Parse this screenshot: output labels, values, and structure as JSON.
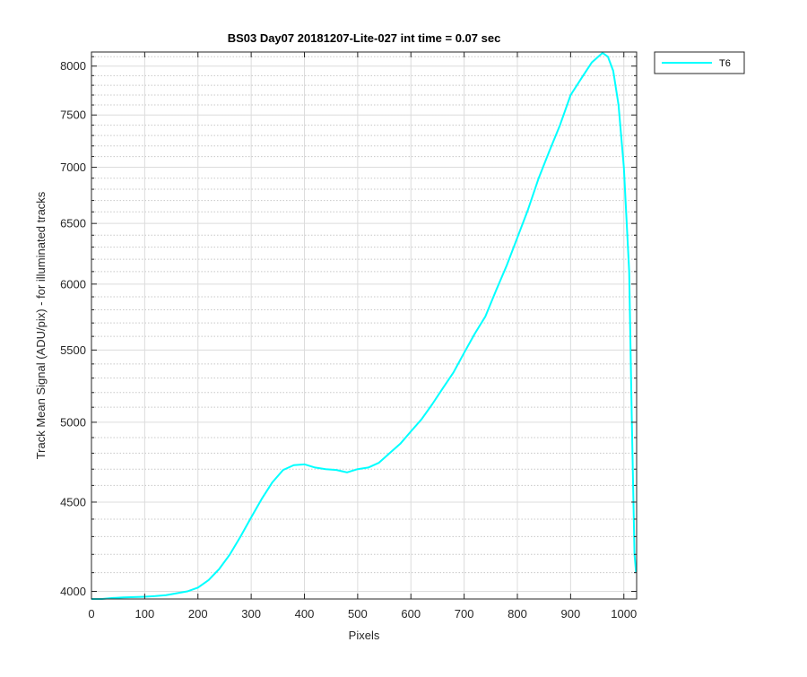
{
  "chart_data": {
    "type": "line",
    "title": "BS03 Day07 20181207-Lite-027 int time = 0.07 sec",
    "xlabel": "Pixels",
    "ylabel": "Track Mean Signal (ADU/pix) - for illuminated tracks",
    "xlim": [
      0,
      1024
    ],
    "ylim": [
      3960,
      8150
    ],
    "yscale": "log",
    "grid": true,
    "minor_grid": true,
    "legend_position": "outside-top-right",
    "x_ticks": [
      0,
      100,
      200,
      300,
      400,
      500,
      600,
      700,
      800,
      900,
      1000
    ],
    "y_ticks": [
      4000,
      4500,
      5000,
      5500,
      6000,
      6500,
      7000,
      7500,
      8000
    ],
    "y_minor_ticks": [
      4100,
      4200,
      4300,
      4400,
      4600,
      4700,
      4800,
      4900,
      5100,
      5200,
      5300,
      5400,
      5600,
      5700,
      5800,
      5900,
      6100,
      6200,
      6300,
      6400,
      6600,
      6700,
      6800,
      6900,
      7100,
      7200,
      7300,
      7400,
      7600,
      7700,
      7800,
      7900,
      8100
    ],
    "series": [
      {
        "name": "T6",
        "color": "#00ffff",
        "x": [
          0,
          20,
          40,
          60,
          80,
          100,
          120,
          140,
          160,
          180,
          200,
          220,
          240,
          260,
          280,
          300,
          320,
          340,
          360,
          380,
          400,
          420,
          440,
          460,
          480,
          500,
          520,
          540,
          560,
          580,
          600,
          620,
          640,
          660,
          680,
          700,
          720,
          740,
          760,
          780,
          800,
          820,
          840,
          860,
          880,
          900,
          920,
          940,
          960,
          970,
          980,
          990,
          1000,
          1010,
          1015,
          1020,
          1023
        ],
        "values": [
          3960,
          3960,
          3965,
          3968,
          3970,
          3972,
          3975,
          3980,
          3990,
          4000,
          4020,
          4060,
          4120,
          4200,
          4300,
          4410,
          4520,
          4620,
          4695,
          4725,
          4730,
          4710,
          4700,
          4695,
          4680,
          4700,
          4710,
          4740,
          4800,
          4860,
          4940,
          5020,
          5120,
          5230,
          5340,
          5480,
          5620,
          5750,
          5950,
          6150,
          6380,
          6620,
          6900,
          7150,
          7400,
          7700,
          7870,
          8040,
          8140,
          8100,
          7950,
          7600,
          7000,
          6100,
          5000,
          4200,
          4100
        ]
      }
    ]
  }
}
